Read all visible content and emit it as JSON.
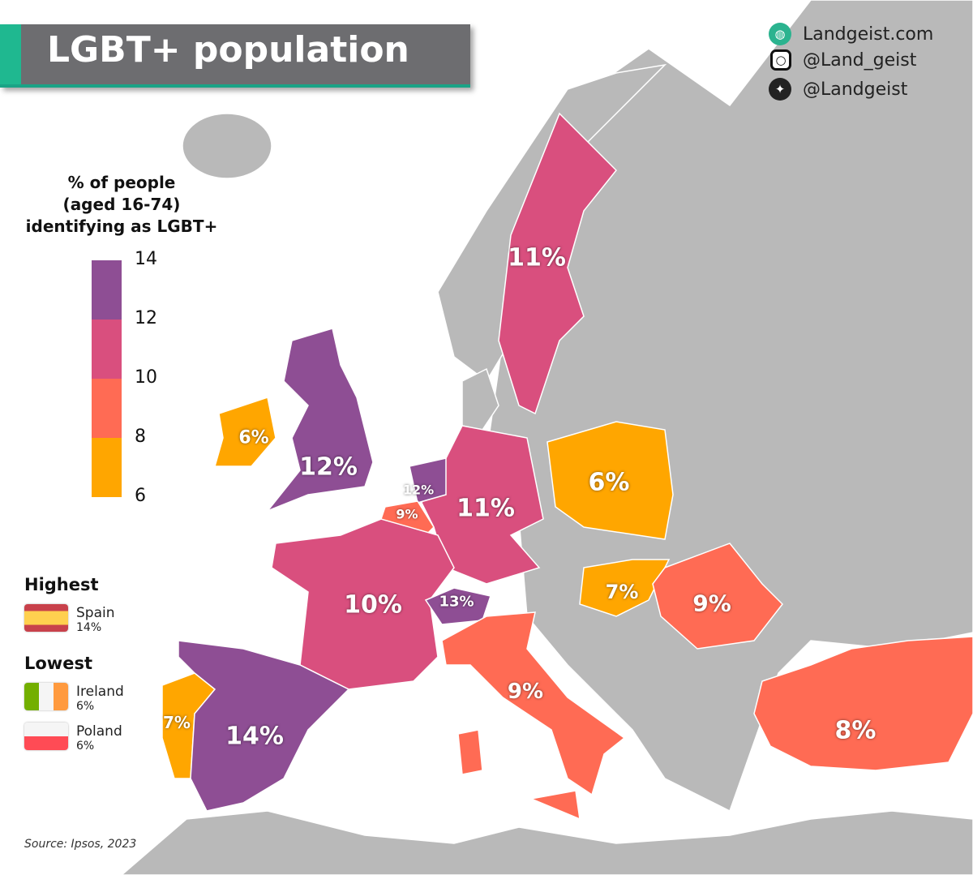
{
  "title": "LGBT+ population",
  "social": {
    "website": "Landgeist.com",
    "instagram": "@Land_geist",
    "twitter": "@Landgeist"
  },
  "legend": {
    "title_lines": [
      "% of people",
      "(aged 16-74)",
      "identifying as LGBT+"
    ],
    "ticks": [
      "14",
      "12",
      "10",
      "8",
      "6"
    ],
    "bins": [
      {
        "range": [
          12,
          14
        ],
        "color": "#8e4e94"
      },
      {
        "range": [
          10,
          12
        ],
        "color": "#d94f7e"
      },
      {
        "range": [
          8,
          10
        ],
        "color": "#ff6b54"
      },
      {
        "range": [
          6,
          8
        ],
        "color": "#ffa600"
      }
    ]
  },
  "highest": {
    "heading": "Highest",
    "items": [
      {
        "country": "Spain",
        "value": "14%"
      }
    ]
  },
  "lowest": {
    "heading": "Lowest",
    "items": [
      {
        "country": "Ireland",
        "value": "6%"
      },
      {
        "country": "Poland",
        "value": "6%"
      }
    ]
  },
  "countries": [
    {
      "name": "Ireland",
      "label": "6%",
      "value": 6
    },
    {
      "name": "United Kingdom",
      "label": "12%",
      "value": 12
    },
    {
      "name": "Netherlands",
      "label": "12%",
      "value": 12
    },
    {
      "name": "Belgium",
      "label": "9%",
      "value": 9
    },
    {
      "name": "Germany",
      "label": "11%",
      "value": 11
    },
    {
      "name": "Poland",
      "label": "6%",
      "value": 6
    },
    {
      "name": "Sweden",
      "label": "11%",
      "value": 11
    },
    {
      "name": "France",
      "label": "10%",
      "value": 10
    },
    {
      "name": "Switzerland",
      "label": "13%",
      "value": 13
    },
    {
      "name": "Spain",
      "label": "14%",
      "value": 14
    },
    {
      "name": "Portugal",
      "label": "7%",
      "value": 7
    },
    {
      "name": "Italy",
      "label": "9%",
      "value": 9
    },
    {
      "name": "Hungary",
      "label": "7%",
      "value": 7
    },
    {
      "name": "Romania",
      "label": "9%",
      "value": 9
    },
    {
      "name": "Turkey",
      "label": "8%",
      "value": 8
    }
  ],
  "no_data_color": "#b9b9b9",
  "source": "Source: Ipsos, 2023"
}
